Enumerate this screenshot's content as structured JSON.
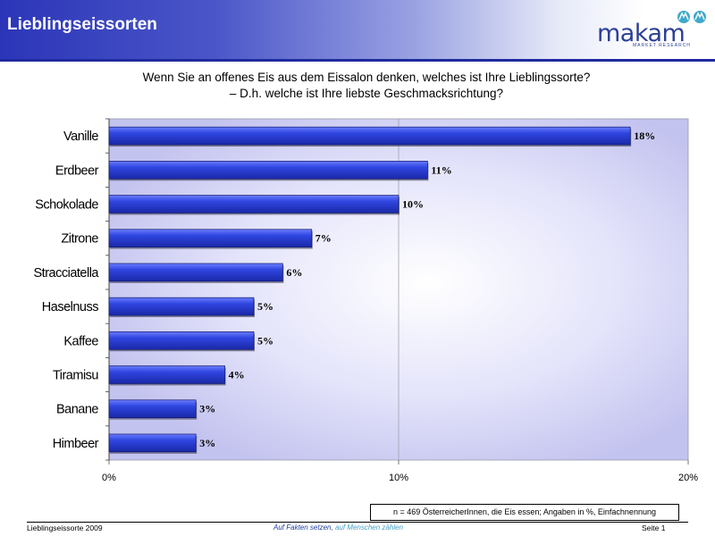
{
  "header": {
    "title": "Lieblingseissorten"
  },
  "logo": {
    "name": "makam",
    "subtitle": "MARKET RESEARCH"
  },
  "question": {
    "line1": "Wenn Sie an offenes Eis aus dem Eissalon denken, welches ist Ihre Lieblingssorte?",
    "line2": "– D.h. welche ist Ihre liebste Geschmacksrichtung?"
  },
  "chart_data": {
    "type": "bar",
    "orientation": "horizontal",
    "categories": [
      "Vanille",
      "Erdbeer",
      "Schokolade",
      "Zitrone",
      "Stracciatella",
      "Haselnuss",
      "Kaffee",
      "Tiramisu",
      "Banane",
      "Himbeer"
    ],
    "values": [
      18,
      11,
      10,
      7,
      6,
      5,
      5,
      4,
      3,
      3
    ],
    "value_labels": [
      "18%",
      "11%",
      "10%",
      "7%",
      "6%",
      "5%",
      "5%",
      "4%",
      "3%",
      "3%"
    ],
    "xlim": [
      0,
      20
    ],
    "xticks": [
      0,
      10,
      20
    ],
    "xtick_labels": [
      "0%",
      "10%",
      "20%"
    ],
    "grid": true,
    "bar_color": "#2a3dd6"
  },
  "note": "n = 469 ÖsterreicherInnen, die Eis essen; Angaben in  %,  Einfachnennung",
  "footer": {
    "left": "Lieblingseissorte 2009",
    "center_part1": "Auf Fakten setzen, ",
    "center_part2": "auf Menschen zählen",
    "right": "Seite 1"
  }
}
